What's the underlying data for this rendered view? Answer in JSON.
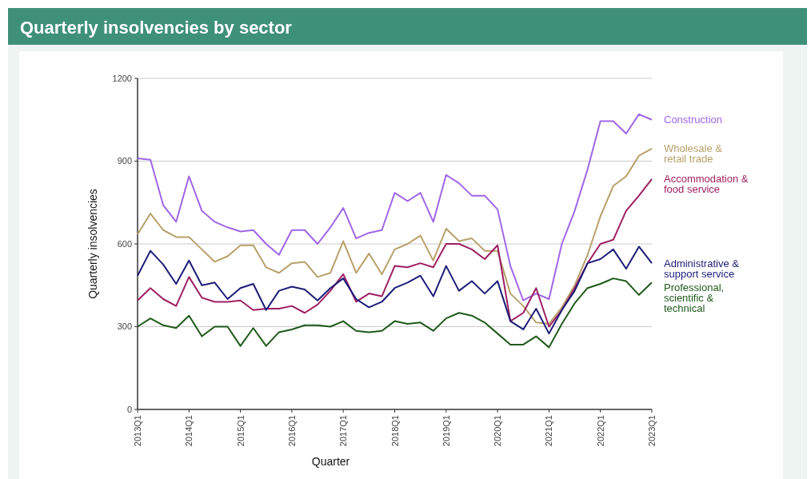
{
  "chart_data": {
    "type": "line",
    "title": "Quarterly insolvencies by sector",
    "xlabel": "Quarter",
    "ylabel": "Quarterly insolvencies",
    "categories": [
      "2013Q1",
      null,
      null,
      null,
      "2014Q1",
      null,
      null,
      null,
      "2015Q1",
      null,
      null,
      null,
      "2016Q1",
      null,
      null,
      null,
      "2017Q1",
      null,
      null,
      null,
      "2018Q1",
      null,
      null,
      null,
      "2019Q1",
      null,
      null,
      null,
      "2020Q1",
      null,
      null,
      null,
      "2021Q1",
      null,
      null,
      null,
      "2022Q1",
      null,
      null,
      null,
      "2023Q1"
    ],
    "series": [
      {
        "name": "Construction",
        "color": "#a066e8",
        "values": [
          910,
          905,
          740,
          680,
          845,
          720,
          680,
          660,
          645,
          650,
          600,
          560,
          650,
          650,
          600,
          660,
          730,
          620,
          640,
          650,
          785,
          755,
          785,
          680,
          850,
          820,
          775,
          775,
          725,
          520,
          395,
          420,
          400,
          600,
          720,
          870,
          1045,
          1045,
          1000,
          1070,
          1050
        ]
      },
      {
        "name": "Wholesale & retail trade",
        "color": "#b8a06a",
        "values": [
          635,
          710,
          650,
          625,
          625,
          580,
          535,
          555,
          595,
          595,
          515,
          495,
          530,
          535,
          480,
          495,
          610,
          495,
          565,
          490,
          580,
          600,
          630,
          540,
          655,
          610,
          620,
          575,
          575,
          420,
          375,
          315,
          310,
          370,
          450,
          560,
          700,
          810,
          845,
          920,
          945
        ]
      },
      {
        "name": "Accommodation & food service",
        "color": "#9e1f63",
        "values": [
          395,
          440,
          400,
          375,
          480,
          405,
          390,
          390,
          395,
          360,
          365,
          365,
          375,
          350,
          380,
          430,
          490,
          390,
          420,
          410,
          520,
          515,
          530,
          515,
          600,
          600,
          580,
          545,
          595,
          320,
          350,
          440,
          300,
          360,
          440,
          530,
          600,
          615,
          720,
          775,
          835
        ]
      },
      {
        "name": "Administrative & support service",
        "color": "#1c1c78",
        "values": [
          485,
          575,
          525,
          455,
          540,
          450,
          460,
          400,
          440,
          455,
          360,
          430,
          445,
          435,
          395,
          440,
          475,
          400,
          370,
          390,
          440,
          460,
          485,
          410,
          520,
          430,
          465,
          420,
          465,
          320,
          290,
          365,
          275,
          360,
          430,
          530,
          545,
          580,
          510,
          590,
          530
        ]
      },
      {
        "name": "Professional, scientific & technical",
        "color": "#1f5a1a",
        "values": [
          300,
          330,
          305,
          295,
          340,
          265,
          300,
          300,
          230,
          295,
          230,
          280,
          290,
          305,
          305,
          300,
          320,
          285,
          280,
          285,
          320,
          310,
          315,
          285,
          330,
          350,
          340,
          315,
          275,
          235,
          235,
          265,
          225,
          310,
          385,
          440,
          455,
          475,
          465,
          415,
          460
        ]
      }
    ],
    "ylim": [
      0,
      1200
    ],
    "yticks": [
      0,
      300,
      600,
      900,
      1200
    ],
    "grid": "y"
  }
}
